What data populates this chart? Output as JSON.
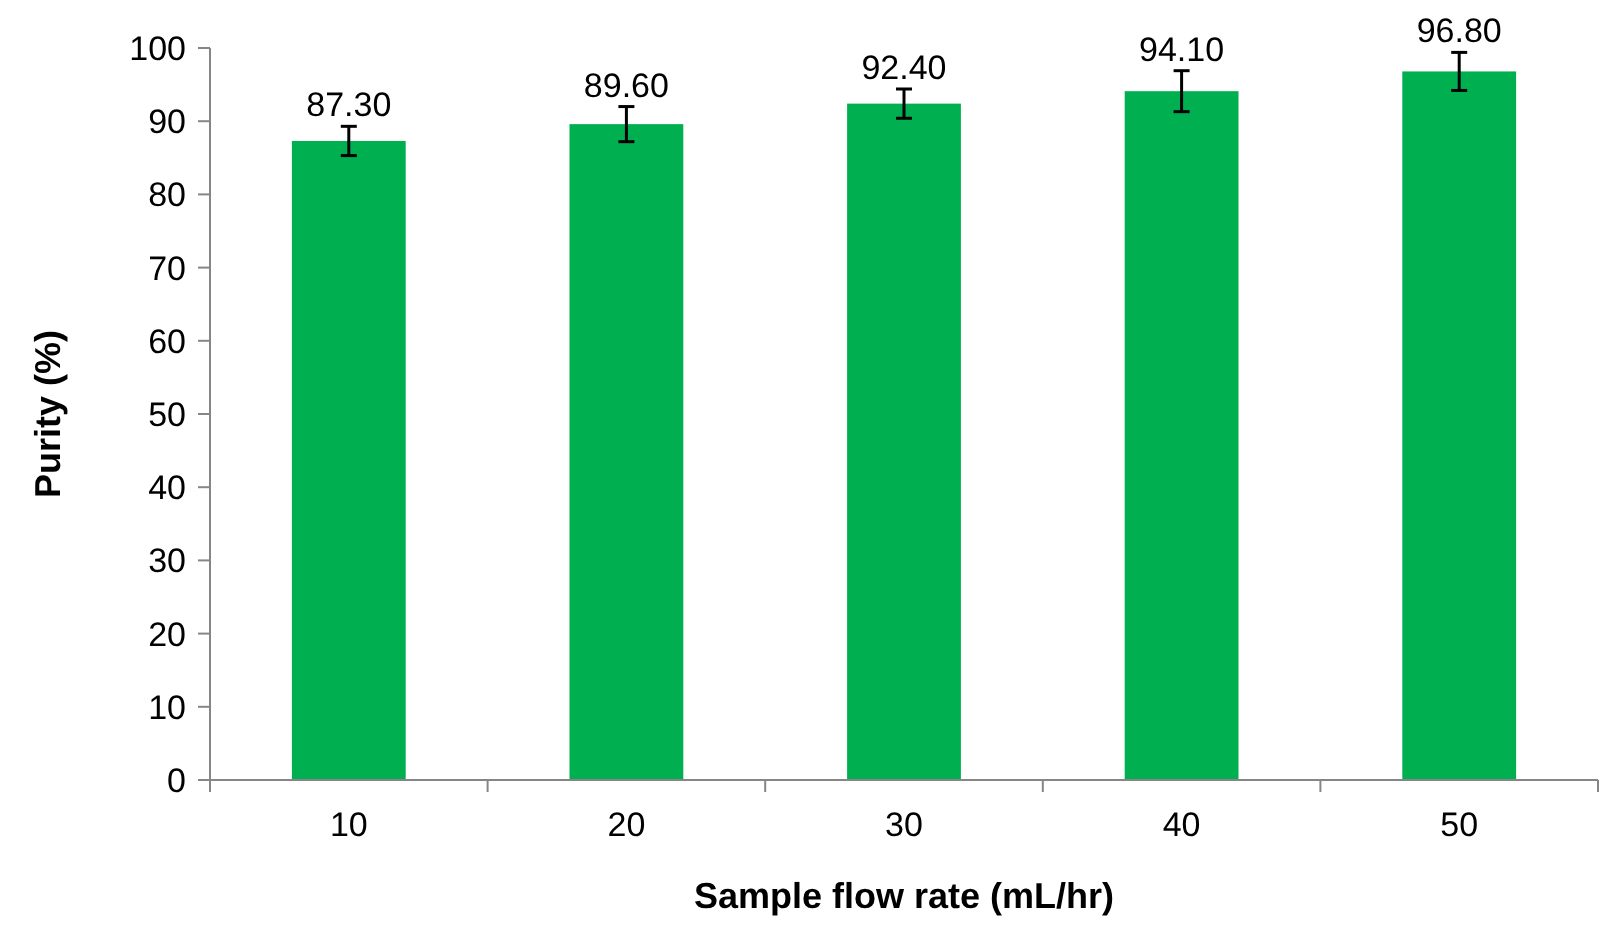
{
  "chart_data": {
    "type": "bar",
    "xlabel": "Sample flow rate (mL/hr)",
    "ylabel": "Purity (%)",
    "categories": [
      "10",
      "20",
      "30",
      "40",
      "50"
    ],
    "values": [
      87.3,
      89.6,
      92.4,
      94.1,
      96.8
    ],
    "value_labels": [
      "87.30",
      "89.60",
      "92.40",
      "94.10",
      "96.80"
    ],
    "errors": [
      2,
      2.4,
      2,
      2.8,
      2.6
    ],
    "color": "#00b050",
    "ylim": [
      0,
      100
    ],
    "yticks": [
      0,
      10,
      20,
      30,
      40,
      50,
      60,
      70,
      80,
      90,
      100
    ],
    "grid": false
  }
}
